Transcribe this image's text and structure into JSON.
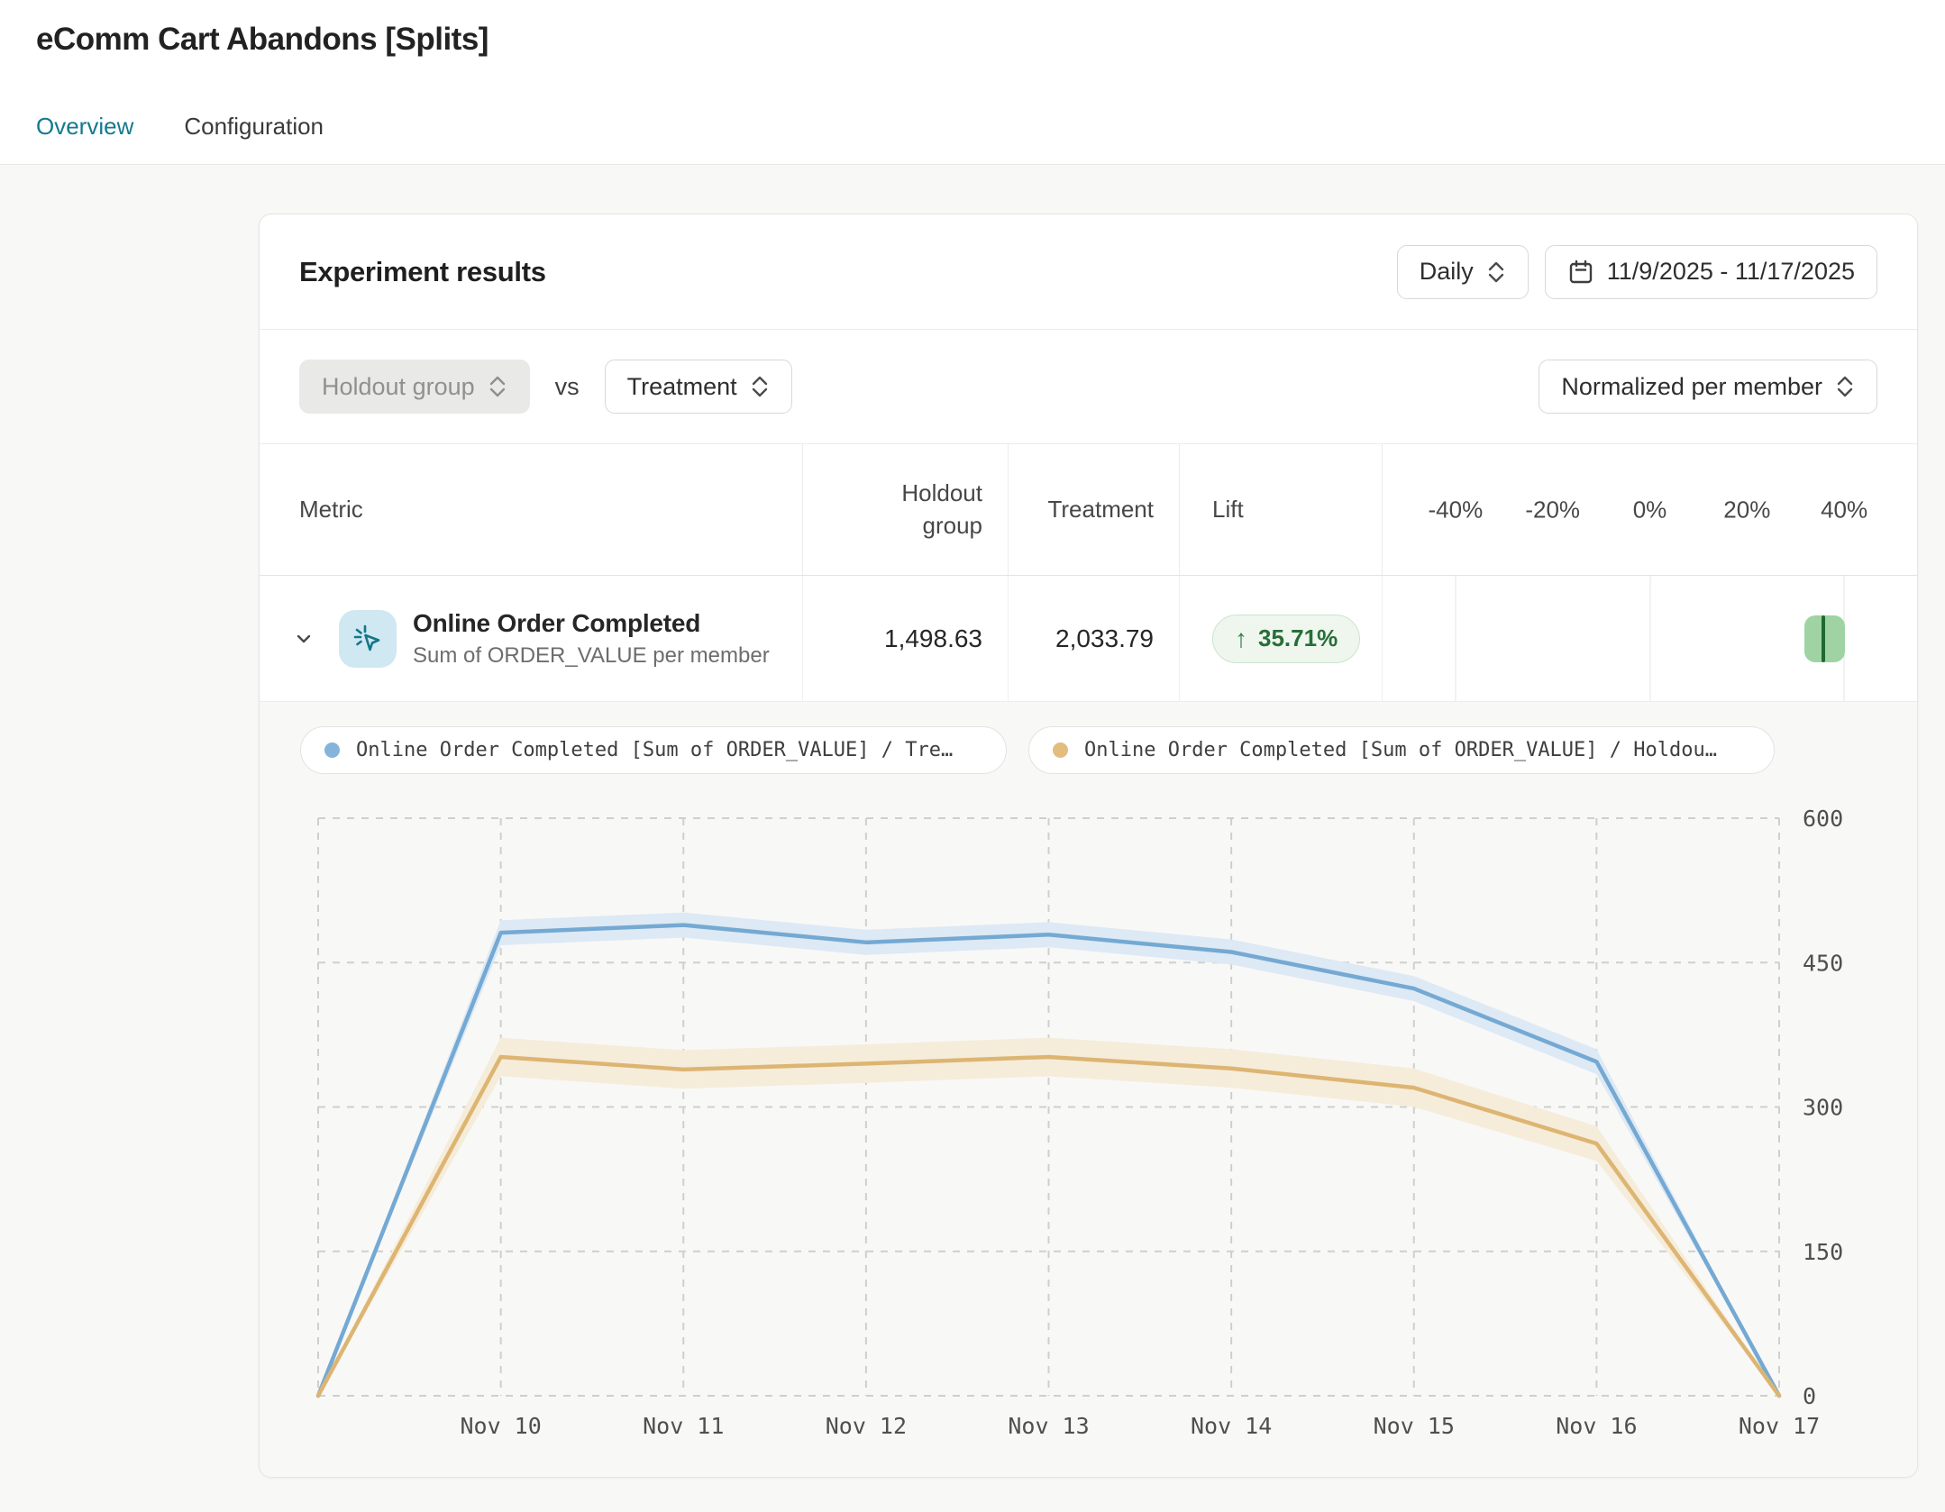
{
  "page": {
    "title": "eComm Cart Abandons [Splits]"
  },
  "tabs": {
    "overview": "Overview",
    "configuration": "Configuration"
  },
  "panel": {
    "title": "Experiment results",
    "granularity": "Daily",
    "date_range": "11/9/2025 - 11/17/2025",
    "compare_left": "Holdout group",
    "compare_vs": "vs",
    "compare_right": "Treatment",
    "normalization": "Normalized per member"
  },
  "table": {
    "col_metric": "Metric",
    "col_holdout": "Holdout group",
    "col_treatment": "Treatment",
    "col_lift": "Lift",
    "scale": {
      "min": -55,
      "max": 55,
      "labels": [
        "-40%",
        "-20%",
        "0%",
        "20%",
        "40%"
      ],
      "label_values": [
        -40,
        -20,
        0,
        20,
        40
      ],
      "gridline_values": [
        -40,
        0,
        40
      ]
    },
    "row": {
      "name": "Online Order Completed",
      "description": "Sum of ORDER_VALUE per member",
      "holdout_value": "1,498.63",
      "treatment_value": "2,033.79",
      "lift_arrow": "↑",
      "lift_label": "35.71%",
      "lift_direction": "up",
      "lift_pct": 35.71,
      "ci_low_pct": 31.9,
      "ci_high_pct": 40.2
    }
  },
  "legend": [
    {
      "label": "Online Order Completed [Sum of ORDER_VALUE] / Tre…",
      "color": "#85b3d9"
    },
    {
      "label": "Online Order Completed [Sum of ORDER_VALUE] / Holdou…",
      "color": "#e2bd7e"
    }
  ],
  "chart_data": {
    "type": "line",
    "x": [
      "Nov 9",
      "Nov 10",
      "Nov 11",
      "Nov 12",
      "Nov 13",
      "Nov 14",
      "Nov 15",
      "Nov 16",
      "Nov 17"
    ],
    "x_tick_labels": [
      "Nov 10",
      "Nov 11",
      "Nov 12",
      "Nov 13",
      "Nov 14",
      "Nov 15",
      "Nov 16",
      "Nov 17"
    ],
    "xlabel": "",
    "ylabel": "",
    "ylim": [
      0,
      600
    ],
    "yticks": [
      0,
      150,
      300,
      450,
      600
    ],
    "grid": "dashed",
    "y_axis_side": "right",
    "series": [
      {
        "name": "Online Order Completed [Sum of ORDER_VALUE] / Treatment",
        "color": "#74a9d3",
        "band_color": "#dde9f4",
        "values": [
          0,
          481,
          489,
          471,
          479,
          461,
          423,
          347,
          0
        ],
        "band_delta": [
          0,
          13,
          13,
          13,
          13,
          13,
          13,
          13,
          0
        ]
      },
      {
        "name": "Online Order Completed [Sum of ORDER_VALUE] / Holdout group",
        "color": "#ddb572",
        "band_color": "#f6ecda",
        "values": [
          0,
          352,
          339,
          345,
          352,
          340,
          320,
          262,
          0
        ],
        "band_delta": [
          0,
          20,
          20,
          20,
          20,
          20,
          20,
          18,
          0
        ]
      }
    ]
  },
  "colors": {
    "accent_teal": "#15798f",
    "lift_green": "#2e7d45",
    "ci_bar_fill": "#9fd3a4",
    "ci_center_line": "#1e6b2e",
    "page_bg": "#f8f8f7"
  }
}
